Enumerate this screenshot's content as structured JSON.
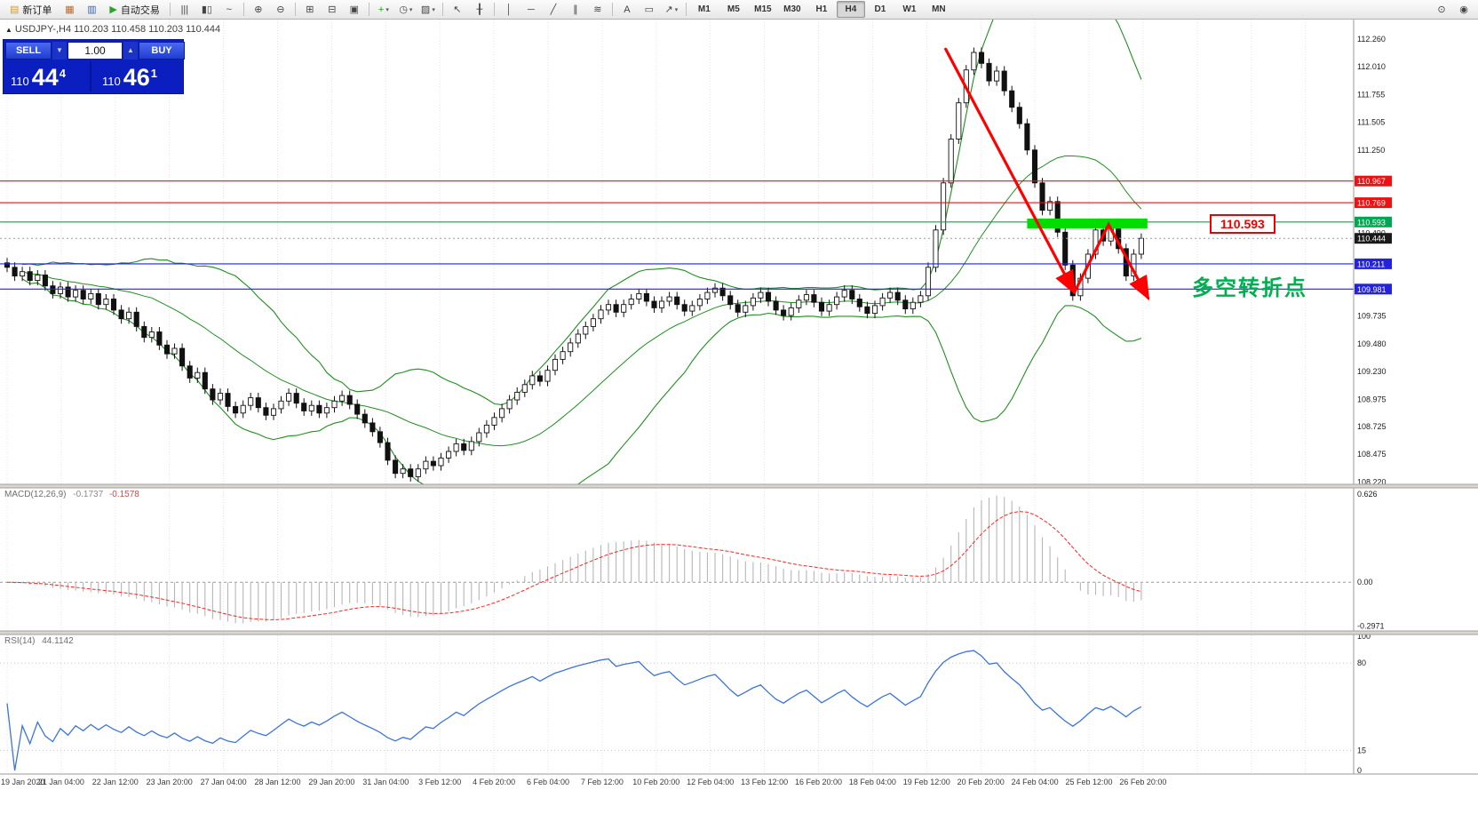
{
  "toolbar": {
    "caret_glyph": "▾",
    "timeframes": [
      "M1",
      "M5",
      "M15",
      "M30",
      "H1",
      "H4",
      "D1",
      "W1",
      "MN"
    ],
    "active_timeframe": "H4",
    "items": [
      {
        "kind": "labeled",
        "name": "new-order-button",
        "glyph": "▤",
        "glyph_color": "#d29a2e",
        "label": "新订单"
      },
      {
        "kind": "icon",
        "name": "market-watch-icon",
        "glyph": "▦",
        "color": "#b8682c"
      },
      {
        "kind": "icon",
        "name": "navigator-icon",
        "glyph": "▥",
        "color": "#3a62b0"
      },
      {
        "kind": "labeled",
        "name": "auto-trading-button",
        "glyph": "▶",
        "glyph_color": "#28a428",
        "label": "自动交易"
      },
      {
        "kind": "sep"
      },
      {
        "kind": "icon",
        "name": "bar-chart-icon",
        "glyph": "|||"
      },
      {
        "kind": "icon",
        "name": "candlestick-chart-icon",
        "glyph": "▮▯"
      },
      {
        "kind": "icon",
        "name": "line-chart-icon",
        "glyph": "~"
      },
      {
        "kind": "sep"
      },
      {
        "kind": "icon",
        "name": "zoom-in-icon",
        "glyph": "⊕"
      },
      {
        "kind": "icon",
        "name": "zoom-out-icon",
        "glyph": "⊖"
      },
      {
        "kind": "sep"
      },
      {
        "kind": "icon",
        "name": "tile-windows-icon",
        "glyph": "⊞"
      },
      {
        "kind": "icon",
        "name": "cascade-windows-icon",
        "glyph": "⊟"
      },
      {
        "kind": "icon",
        "name": "auto-arrange-icon",
        "glyph": "▣"
      },
      {
        "kind": "sep"
      },
      {
        "kind": "icon",
        "name": "add-indicator-icon",
        "glyph": "+",
        "color": "#1f9e1f",
        "caret": true
      },
      {
        "kind": "icon",
        "name": "periods-icon",
        "glyph": "◷",
        "caret": true
      },
      {
        "kind": "icon",
        "name": "templates-icon",
        "glyph": "▨",
        "caret": true
      },
      {
        "kind": "sep"
      },
      {
        "kind": "icon",
        "name": "cursor-icon",
        "glyph": "↖"
      },
      {
        "kind": "icon",
        "name": "crosshair-icon",
        "glyph": "╂"
      },
      {
        "kind": "sep"
      },
      {
        "kind": "icon",
        "name": "vertical-line-icon",
        "glyph": "│"
      },
      {
        "kind": "icon",
        "name": "horizontal-line-icon",
        "glyph": "─"
      },
      {
        "kind": "icon",
        "name": "trendline-icon",
        "glyph": "╱"
      },
      {
        "kind": "icon",
        "name": "channel-icon",
        "glyph": "∥"
      },
      {
        "kind": "icon",
        "name": "fibonacci-icon",
        "glyph": "≋"
      },
      {
        "kind": "sep"
      },
      {
        "kind": "icon",
        "name": "text-icon",
        "glyph": "A"
      },
      {
        "kind": "icon",
        "name": "text-label-icon",
        "glyph": "▭"
      },
      {
        "kind": "icon",
        "name": "arrows-tool-icon",
        "glyph": "↗",
        "caret": true
      },
      {
        "kind": "sep"
      },
      {
        "kind": "timeframes"
      },
      {
        "kind": "spacer"
      },
      {
        "kind": "icon",
        "name": "search-icon",
        "glyph": "⊙"
      },
      {
        "kind": "icon",
        "name": "community-icon",
        "glyph": "◉"
      }
    ]
  },
  "symbol_line": {
    "marker": "▲",
    "text": "USDJPY-,H4  110.203 110.458 110.203 110.444"
  },
  "trade_panel": {
    "sell": "SELL",
    "buy": "BUY",
    "volume": "1.00",
    "step_down": "▼",
    "step_up": "▲",
    "sell_price": {
      "main": "110",
      "big": "44",
      "sup": "4"
    },
    "buy_price": {
      "main": "110",
      "big": "46",
      "sup": "1"
    }
  },
  "annotations": {
    "price_box": "110.593",
    "turning_point": "多空转折点"
  },
  "chart_data": [
    {
      "type": "candlestick",
      "symbol": "USDJPY-",
      "timeframe": "H4",
      "ohlc_display": {
        "open": 110.203,
        "high": 110.458,
        "low": 110.203,
        "close": 110.444
      },
      "ylim": [
        108.2,
        112.44
      ],
      "y_ticks": [
        112.26,
        112.01,
        111.755,
        111.505,
        111.25,
        110.49,
        109.735,
        109.48,
        109.23,
        108.975,
        108.725,
        108.475,
        108.22
      ],
      "x_labels": [
        "19 Jan 2020",
        "21 Jan 04:00",
        "22 Jan 12:00",
        "23 Jan 20:00",
        "27 Jan 04:00",
        "28 Jan 12:00",
        "29 Jan 20:00",
        "31 Jan 04:00",
        "3 Feb 12:00",
        "4 Feb 20:00",
        "6 Feb 04:00",
        "7 Feb 12:00",
        "10 Feb 20:00",
        "12 Feb 04:00",
        "13 Feb 12:00",
        "16 Feb 20:00",
        "18 Feb 04:00",
        "19 Feb 12:00",
        "20 Feb 20:00",
        "24 Feb 04:00",
        "25 Feb 12:00",
        "26 Feb 20:00"
      ],
      "open_first": 110.22,
      "wick": 0.045,
      "closes": [
        110.18,
        110.1,
        110.14,
        110.06,
        110.11,
        110.01,
        109.94,
        110.0,
        109.91,
        109.97,
        109.89,
        109.94,
        109.84,
        109.89,
        109.79,
        109.71,
        109.77,
        109.64,
        109.54,
        109.59,
        109.47,
        109.39,
        109.44,
        109.28,
        109.17,
        109.22,
        109.07,
        108.97,
        109.03,
        108.91,
        108.85,
        108.92,
        108.99,
        108.9,
        108.83,
        108.89,
        108.96,
        109.03,
        108.94,
        108.87,
        108.92,
        108.85,
        108.9,
        108.96,
        109.01,
        108.93,
        108.84,
        108.76,
        108.68,
        108.58,
        108.42,
        108.3,
        108.34,
        108.27,
        108.34,
        108.41,
        108.37,
        108.44,
        108.5,
        108.57,
        108.51,
        108.59,
        108.67,
        108.74,
        108.81,
        108.89,
        108.97,
        109.04,
        109.11,
        109.19,
        109.14,
        109.24,
        109.34,
        109.41,
        109.49,
        109.57,
        109.64,
        109.71,
        109.79,
        109.84,
        109.77,
        109.84,
        109.89,
        109.94,
        109.87,
        109.81,
        109.87,
        109.91,
        109.84,
        109.78,
        109.83,
        109.89,
        109.95,
        109.99,
        109.92,
        109.84,
        109.77,
        109.83,
        109.9,
        109.95,
        109.87,
        109.79,
        109.74,
        109.81,
        109.88,
        109.93,
        109.86,
        109.78,
        109.84,
        109.91,
        109.97,
        109.89,
        109.82,
        109.76,
        109.83,
        109.9,
        109.95,
        109.88,
        109.8,
        109.86,
        109.92,
        110.18,
        110.52,
        110.95,
        111.35,
        111.68,
        111.98,
        112.14,
        112.04,
        111.88,
        111.97,
        111.79,
        111.64,
        111.49,
        111.25,
        110.95,
        110.7,
        110.78,
        110.5,
        110.2,
        109.92,
        110.08,
        110.3,
        110.52,
        110.42,
        110.55,
        110.35,
        110.1,
        110.3,
        110.444
      ],
      "bollinger": {
        "period": 20,
        "deviation": 2,
        "color": "#1f8f1f"
      },
      "levels": [
        {
          "price": 110.967,
          "color": "#ee1111"
        },
        {
          "price": 110.769,
          "color": "#ee1111"
        },
        {
          "price": 110.593,
          "color": "#00a651"
        },
        {
          "price": 110.211,
          "color": "#2222e0"
        },
        {
          "price": 109.981,
          "color": "#2222e0"
        }
      ],
      "current_price": 110.444,
      "axis_badges": [
        {
          "price": 110.967,
          "color": "#ee1111"
        },
        {
          "price": 110.769,
          "color": "#ee1111"
        },
        {
          "price": 110.593,
          "color": "#00a651"
        },
        {
          "price": 110.444,
          "color": "#1a1a1a"
        },
        {
          "price": 110.211,
          "color": "#2222e0"
        },
        {
          "price": 109.981,
          "color": "#2222e0"
        }
      ],
      "highlight_zone": {
        "from_candle": 134,
        "to_candle": 149.8,
        "price_top": 110.625,
        "price_bottom": 110.535,
        "color": "#00dd00"
      },
      "arrows": [
        {
          "points": [
            [
              123.3,
              112.17
            ],
            [
              140.2,
              109.95
            ]
          ]
        },
        {
          "points": [
            [
              140.2,
              109.95
            ],
            [
              144.7,
              110.57
            ],
            [
              149.9,
              109.9
            ]
          ]
        }
      ],
      "arrow_color": "#ff0000"
    },
    {
      "type": "macd",
      "label": "MACD(12,26,9)",
      "value_main": "-0.1737",
      "value_signal": "-0.1578",
      "fast": 12,
      "slow": 26,
      "signal": 9,
      "y_ticks": [
        "0.626",
        "0.00",
        "-0.2971"
      ],
      "histogram_color": "#b6b6b6",
      "signal_color": "#ff2222"
    },
    {
      "type": "rsi",
      "label": "RSI(14)",
      "value": "44.1142",
      "period": 14,
      "y_ticks": [
        "100",
        "80",
        "15",
        "0"
      ],
      "levels": [
        80,
        15
      ],
      "line_color": "#3c74d8",
      "range": [
        0,
        100
      ]
    }
  ]
}
